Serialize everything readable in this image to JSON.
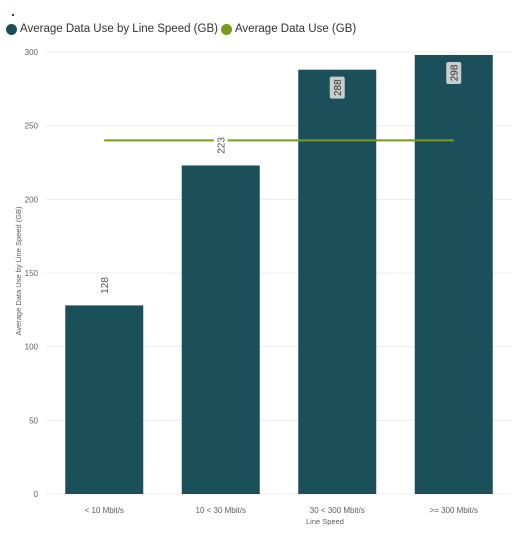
{
  "chart_data": {
    "type": "bar",
    "categories": [
      "< 10 Mbit/s",
      "10 < 30 Mbit/s",
      "30 < 300 Mbit/s",
      ">= 300 Mbit/s"
    ],
    "series": [
      {
        "name": "Average Data Use by Line Speed (GB)",
        "type": "bar",
        "color": "#1b4f59",
        "values": [
          128,
          223,
          288,
          298
        ],
        "data_labels": [
          "128",
          "223",
          "288",
          "298"
        ]
      },
      {
        "name": "Average Data Use (GB)",
        "type": "line",
        "color": "#7a9a1e",
        "values": [
          240,
          240,
          240,
          240
        ]
      }
    ],
    "xlabel": "Line Speed",
    "ylabel": "Average Data Use by Line Speed (GB)",
    "ylim": [
      0,
      300
    ],
    "yticks": [
      "0",
      "50",
      "100",
      "150",
      "200",
      "250",
      "300"
    ],
    "grid": true,
    "legend": "top-left"
  }
}
